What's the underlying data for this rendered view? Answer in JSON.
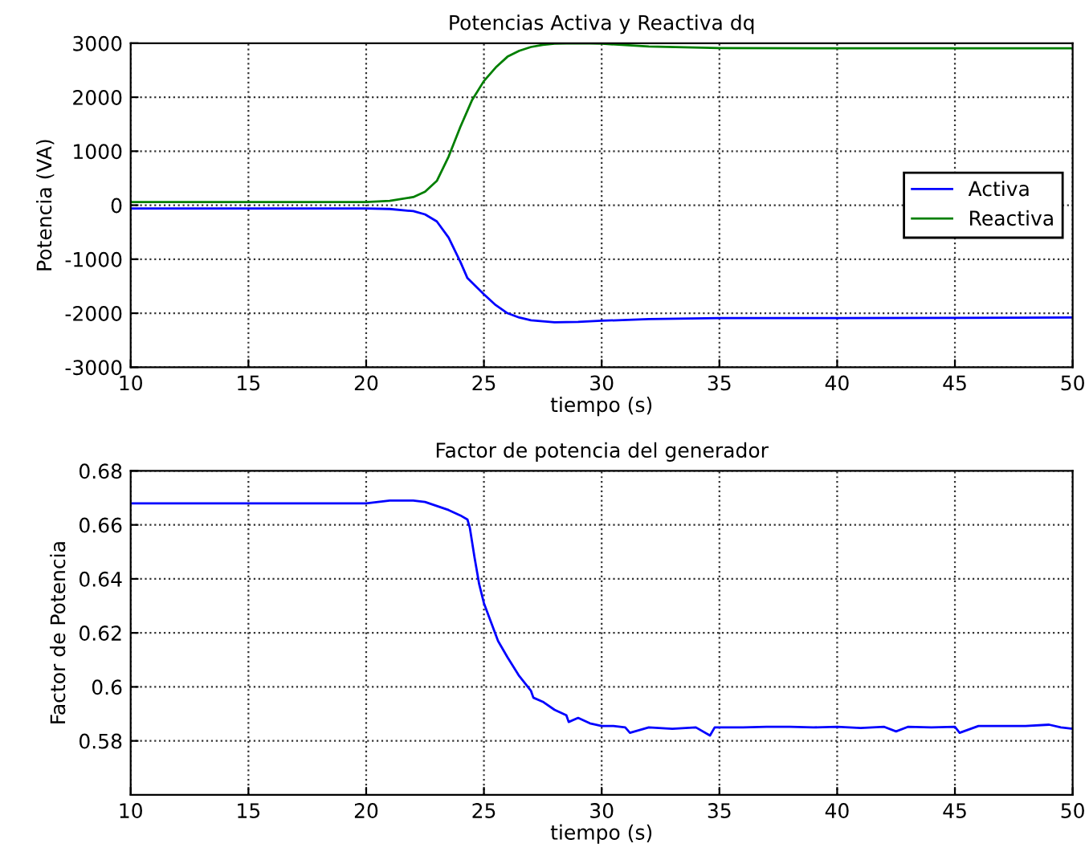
{
  "chart_data": [
    {
      "type": "line",
      "title": "Potencias Activa y Reactiva dq",
      "xlabel": "tiempo (s)",
      "ylabel": "Potencia (VA)",
      "xlim": [
        10,
        50
      ],
      "xticks": [
        10,
        15,
        20,
        25,
        30,
        35,
        40,
        45,
        50
      ],
      "ylim": [
        -3000,
        3000
      ],
      "yticks": [
        -3000,
        -2000,
        -1000,
        0,
        1000,
        2000,
        3000
      ],
      "grid": true,
      "legend": "right",
      "series": [
        {
          "name": "Activa",
          "color": "#0000ff",
          "x": [
            10,
            15,
            20,
            21,
            22,
            22.5,
            23,
            23.5,
            24,
            24.3,
            25,
            25.5,
            26,
            26.5,
            27,
            28,
            29,
            30,
            32,
            35,
            40,
            45,
            50
          ],
          "values": [
            -60,
            -60,
            -60,
            -70,
            -110,
            -170,
            -300,
            -600,
            -1050,
            -1350,
            -1650,
            -1850,
            -2000,
            -2080,
            -2130,
            -2170,
            -2160,
            -2140,
            -2110,
            -2090,
            -2090,
            -2085,
            -2080
          ]
        },
        {
          "name": "Reactiva",
          "color": "#007f00",
          "x": [
            10,
            15,
            20,
            21,
            22,
            22.5,
            23,
            23.5,
            24,
            24.5,
            25,
            25.5,
            26,
            26.5,
            27,
            27.5,
            28,
            29,
            30,
            32,
            35,
            40,
            45,
            50
          ],
          "values": [
            60,
            60,
            60,
            80,
            150,
            250,
            450,
            900,
            1450,
            1950,
            2300,
            2550,
            2750,
            2860,
            2930,
            2970,
            2990,
            3000,
            2990,
            2940,
            2910,
            2905,
            2905,
            2905
          ]
        }
      ]
    },
    {
      "type": "line",
      "title": "Factor de potencia del generador",
      "xlabel": "tiempo (s)",
      "ylabel": "Factor de Potencia",
      "xlim": [
        10,
        50
      ],
      "xticks": [
        10,
        15,
        20,
        25,
        30,
        35,
        40,
        45,
        50
      ],
      "ylim": [
        0.56,
        0.68
      ],
      "yticks": [
        0.58,
        0.6,
        0.62,
        0.64,
        0.66,
        0.68
      ],
      "grid": true,
      "series": [
        {
          "color": "#0000ff",
          "x": [
            10,
            15,
            20,
            20.5,
            21,
            21.5,
            22,
            22.5,
            23,
            23.5,
            24,
            24.3,
            24.4,
            24.6,
            24.8,
            25,
            25.3,
            25.6,
            26,
            26.5,
            27,
            27.1,
            27.5,
            28,
            28.5,
            28.6,
            29,
            29.5,
            30,
            30.5,
            31,
            31.2,
            32,
            33,
            34,
            34.6,
            34.8,
            35,
            36,
            37,
            38,
            39,
            40,
            41,
            42,
            42.5,
            43,
            44,
            45,
            45.2,
            46,
            47,
            48,
            49,
            49.5,
            50
          ],
          "values": [
            0.668,
            0.668,
            0.668,
            0.6685,
            0.669,
            0.669,
            0.669,
            0.6685,
            0.667,
            0.6655,
            0.6635,
            0.662,
            0.659,
            0.648,
            0.638,
            0.631,
            0.624,
            0.617,
            0.611,
            0.604,
            0.5985,
            0.596,
            0.5945,
            0.5915,
            0.5895,
            0.587,
            0.5885,
            0.5865,
            0.5855,
            0.5855,
            0.585,
            0.583,
            0.585,
            0.5845,
            0.585,
            0.582,
            0.585,
            0.585,
            0.585,
            0.5852,
            0.5852,
            0.585,
            0.5852,
            0.5848,
            0.5852,
            0.5835,
            0.5852,
            0.585,
            0.5852,
            0.583,
            0.5855,
            0.5855,
            0.5855,
            0.586,
            0.585,
            0.5845
          ]
        }
      ]
    }
  ]
}
